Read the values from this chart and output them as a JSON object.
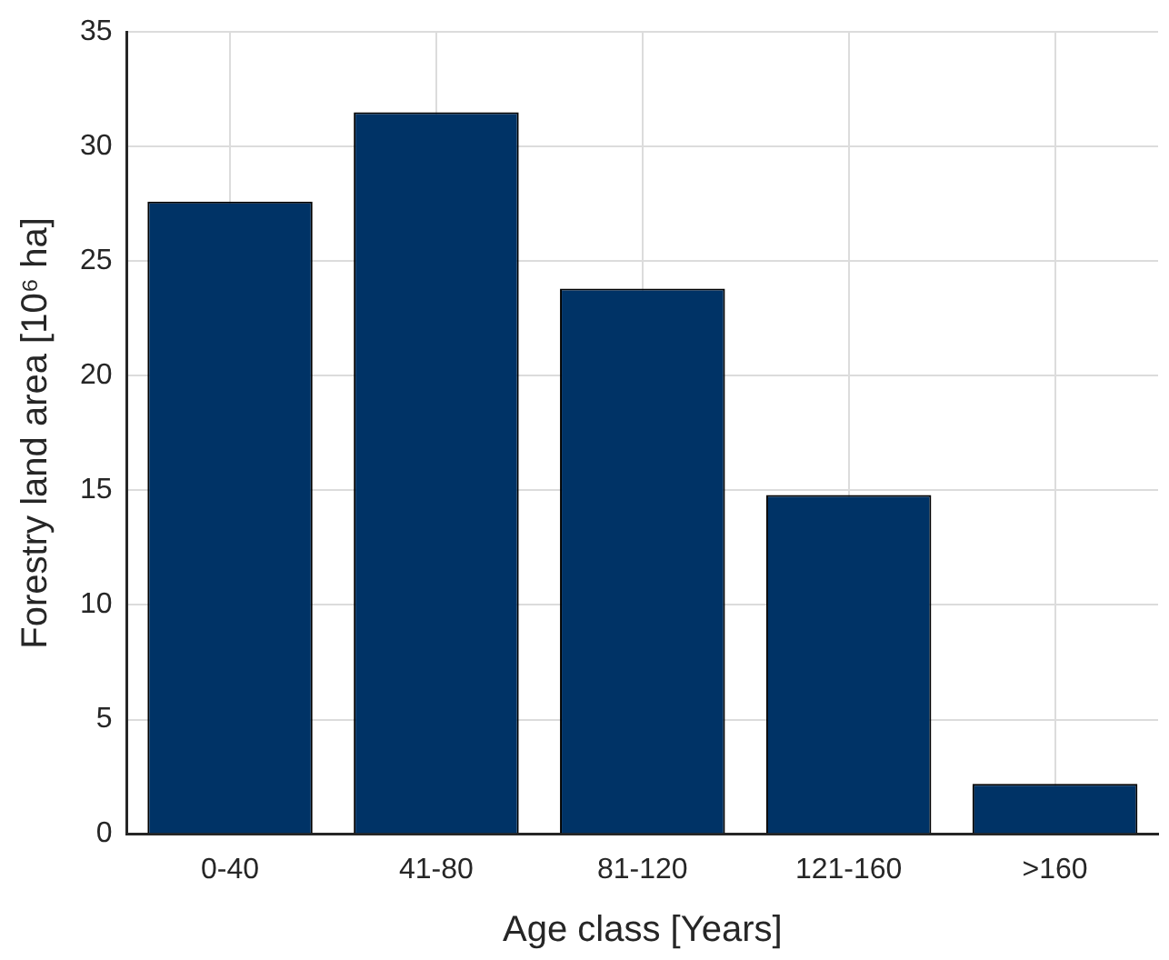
{
  "chart_data": {
    "type": "bar",
    "xlabel": "Age class [Years]",
    "ylabel": "Forestry land area [10⁶ ha]",
    "categories": [
      "0-40",
      "41-80",
      "81-120",
      "121-160",
      ">160"
    ],
    "values": [
      27.6,
      31.5,
      23.8,
      14.8,
      2.2
    ],
    "color": "#003366",
    "ylim": [
      0,
      35
    ],
    "yticks": [
      0,
      5,
      10,
      15,
      20,
      25,
      30,
      35
    ],
    "grid": true
  }
}
